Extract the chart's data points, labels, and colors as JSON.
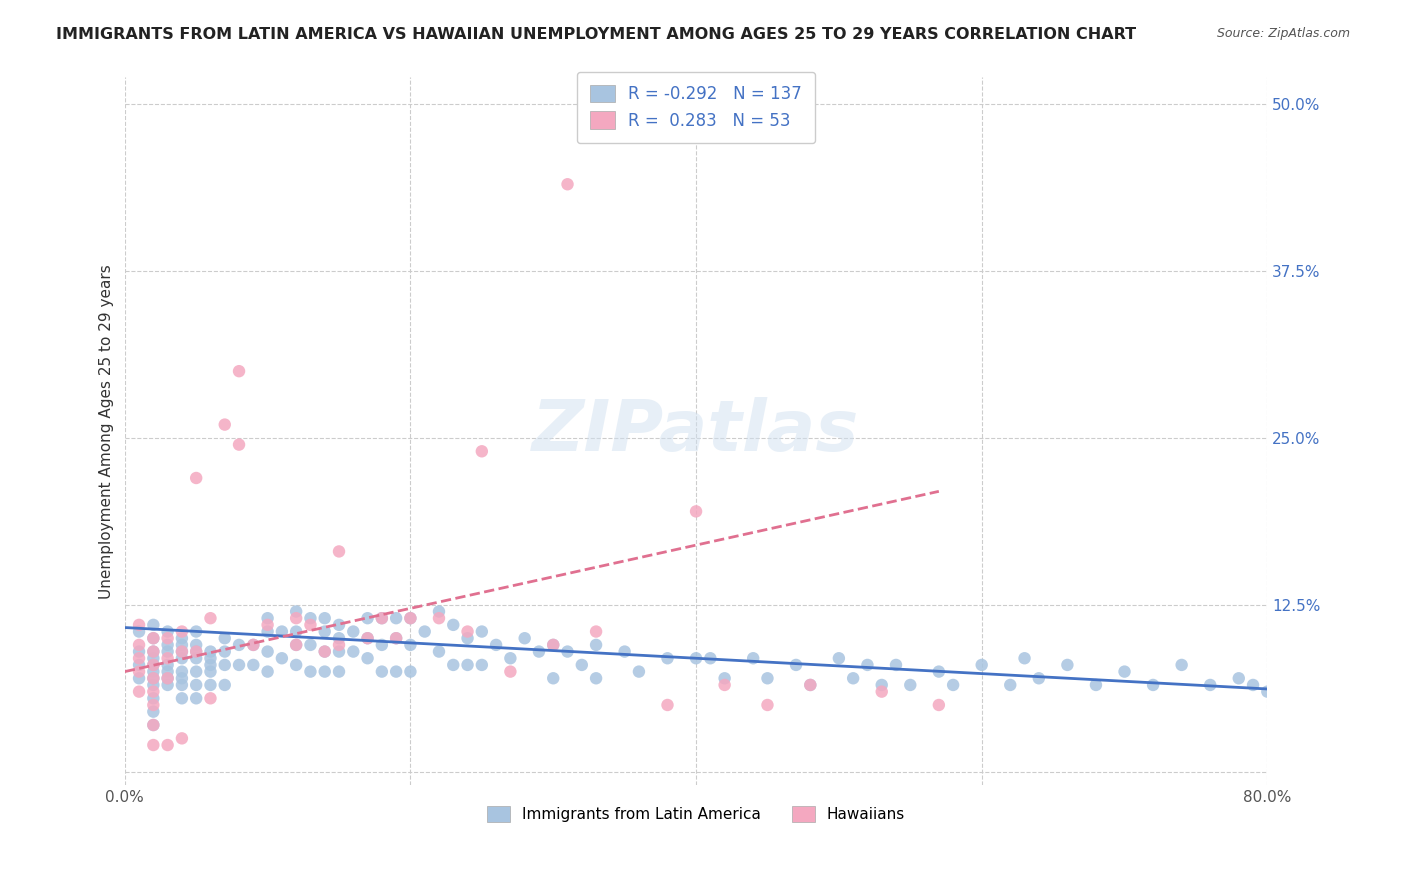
{
  "title": "IMMIGRANTS FROM LATIN AMERICA VS HAWAIIAN UNEMPLOYMENT AMONG AGES 25 TO 29 YEARS CORRELATION CHART",
  "source": "Source: ZipAtlas.com",
  "xlabel": "",
  "ylabel": "Unemployment Among Ages 25 to 29 years",
  "xlim": [
    0.0,
    0.8
  ],
  "ylim": [
    -0.01,
    0.52
  ],
  "x_ticks": [
    0.0,
    0.8
  ],
  "x_tick_labels": [
    "0.0%",
    "80.0%"
  ],
  "y_tick_labels": [
    "",
    "12.5%",
    "25.0%",
    "37.5%",
    "50.0%"
  ],
  "y_tick_vals": [
    0.0,
    0.125,
    0.25,
    0.375,
    0.5
  ],
  "watermark": "ZIPatlas",
  "legend_r_blue": "-0.292",
  "legend_n_blue": "137",
  "legend_r_pink": "0.283",
  "legend_n_pink": "53",
  "blue_color": "#a8c4e0",
  "pink_color": "#f4a8c0",
  "blue_line_color": "#4472c4",
  "pink_line_color": "#e07090",
  "grid_color": "#cccccc",
  "background_color": "#ffffff",
  "blue_scatter_x": [
    0.01,
    0.01,
    0.01,
    0.01,
    0.02,
    0.02,
    0.02,
    0.02,
    0.02,
    0.02,
    0.02,
    0.02,
    0.02,
    0.02,
    0.02,
    0.03,
    0.03,
    0.03,
    0.03,
    0.03,
    0.03,
    0.03,
    0.04,
    0.04,
    0.04,
    0.04,
    0.04,
    0.04,
    0.04,
    0.04,
    0.05,
    0.05,
    0.05,
    0.05,
    0.05,
    0.05,
    0.05,
    0.06,
    0.06,
    0.06,
    0.06,
    0.06,
    0.07,
    0.07,
    0.07,
    0.07,
    0.08,
    0.08,
    0.09,
    0.09,
    0.1,
    0.1,
    0.1,
    0.1,
    0.11,
    0.11,
    0.12,
    0.12,
    0.12,
    0.12,
    0.13,
    0.13,
    0.13,
    0.14,
    0.14,
    0.14,
    0.14,
    0.15,
    0.15,
    0.15,
    0.15,
    0.16,
    0.16,
    0.17,
    0.17,
    0.17,
    0.18,
    0.18,
    0.18,
    0.19,
    0.19,
    0.19,
    0.2,
    0.2,
    0.2,
    0.21,
    0.22,
    0.22,
    0.23,
    0.23,
    0.24,
    0.24,
    0.25,
    0.25,
    0.26,
    0.27,
    0.28,
    0.29,
    0.3,
    0.3,
    0.31,
    0.32,
    0.33,
    0.33,
    0.35,
    0.36,
    0.38,
    0.4,
    0.41,
    0.42,
    0.44,
    0.45,
    0.47,
    0.48,
    0.5,
    0.51,
    0.52,
    0.53,
    0.54,
    0.55,
    0.57,
    0.58,
    0.6,
    0.62,
    0.63,
    0.64,
    0.66,
    0.68,
    0.7,
    0.72,
    0.74,
    0.76,
    0.78,
    0.79,
    0.8
  ],
  "blue_scatter_y": [
    0.105,
    0.09,
    0.08,
    0.07,
    0.11,
    0.1,
    0.09,
    0.085,
    0.08,
    0.075,
    0.07,
    0.065,
    0.055,
    0.045,
    0.035,
    0.105,
    0.095,
    0.09,
    0.08,
    0.075,
    0.07,
    0.065,
    0.1,
    0.095,
    0.09,
    0.085,
    0.075,
    0.07,
    0.065,
    0.055,
    0.105,
    0.095,
    0.09,
    0.085,
    0.075,
    0.065,
    0.055,
    0.09,
    0.085,
    0.08,
    0.075,
    0.065,
    0.1,
    0.09,
    0.08,
    0.065,
    0.095,
    0.08,
    0.095,
    0.08,
    0.115,
    0.105,
    0.09,
    0.075,
    0.105,
    0.085,
    0.12,
    0.105,
    0.095,
    0.08,
    0.115,
    0.095,
    0.075,
    0.115,
    0.105,
    0.09,
    0.075,
    0.11,
    0.1,
    0.09,
    0.075,
    0.105,
    0.09,
    0.115,
    0.1,
    0.085,
    0.115,
    0.095,
    0.075,
    0.115,
    0.1,
    0.075,
    0.115,
    0.095,
    0.075,
    0.105,
    0.12,
    0.09,
    0.11,
    0.08,
    0.1,
    0.08,
    0.105,
    0.08,
    0.095,
    0.085,
    0.1,
    0.09,
    0.095,
    0.07,
    0.09,
    0.08,
    0.095,
    0.07,
    0.09,
    0.075,
    0.085,
    0.085,
    0.085,
    0.07,
    0.085,
    0.07,
    0.08,
    0.065,
    0.085,
    0.07,
    0.08,
    0.065,
    0.08,
    0.065,
    0.075,
    0.065,
    0.08,
    0.065,
    0.085,
    0.07,
    0.08,
    0.065,
    0.075,
    0.065,
    0.08,
    0.065,
    0.07,
    0.065,
    0.06
  ],
  "pink_scatter_x": [
    0.01,
    0.01,
    0.01,
    0.01,
    0.01,
    0.02,
    0.02,
    0.02,
    0.02,
    0.02,
    0.02,
    0.02,
    0.02,
    0.03,
    0.03,
    0.03,
    0.03,
    0.04,
    0.04,
    0.04,
    0.05,
    0.05,
    0.06,
    0.06,
    0.07,
    0.08,
    0.08,
    0.09,
    0.1,
    0.12,
    0.12,
    0.13,
    0.14,
    0.15,
    0.15,
    0.17,
    0.18,
    0.19,
    0.2,
    0.22,
    0.24,
    0.25,
    0.27,
    0.3,
    0.31,
    0.33,
    0.38,
    0.4,
    0.42,
    0.45,
    0.48,
    0.53,
    0.57
  ],
  "pink_scatter_y": [
    0.11,
    0.095,
    0.085,
    0.075,
    0.06,
    0.1,
    0.09,
    0.08,
    0.07,
    0.06,
    0.05,
    0.035,
    0.02,
    0.1,
    0.085,
    0.07,
    0.02,
    0.105,
    0.09,
    0.025,
    0.22,
    0.09,
    0.115,
    0.055,
    0.26,
    0.3,
    0.245,
    0.095,
    0.11,
    0.115,
    0.095,
    0.11,
    0.09,
    0.165,
    0.095,
    0.1,
    0.115,
    0.1,
    0.115,
    0.115,
    0.105,
    0.24,
    0.075,
    0.095,
    0.44,
    0.105,
    0.05,
    0.195,
    0.065,
    0.05,
    0.065,
    0.06,
    0.05
  ],
  "blue_trend_x": [
    0.0,
    0.8
  ],
  "blue_trend_y": [
    0.108,
    0.062
  ],
  "pink_trend_x": [
    0.0,
    0.57
  ],
  "pink_trend_y": [
    0.075,
    0.21
  ]
}
